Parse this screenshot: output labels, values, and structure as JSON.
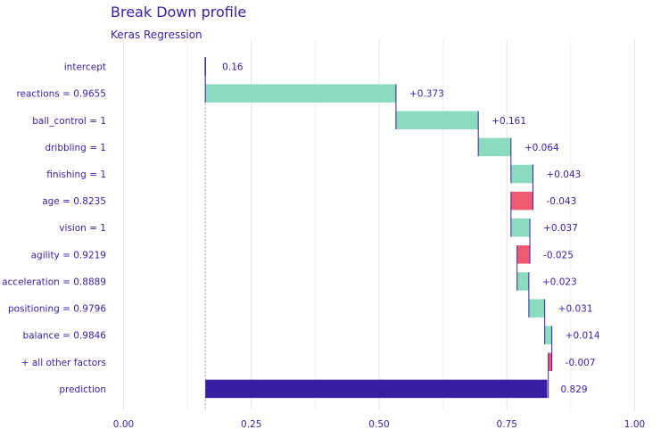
{
  "chart_data": {
    "type": "bar",
    "title": "Break Down profile",
    "subtitle": "Keras Regression",
    "xlim": [
      0,
      1
    ],
    "x_ticks": [
      "0.00",
      "0.25",
      "0.50",
      "0.75",
      "1.00"
    ],
    "x_tick_values": [
      0,
      0.25,
      0.5,
      0.75,
      1.0
    ],
    "grid": true,
    "baseline": 0.16,
    "colors": {
      "positive": "#8bdcbe",
      "negative": "#f05a71",
      "prediction": "#371ea3",
      "text": "#371ea3",
      "grid": "#e6e6e6"
    },
    "bars": [
      {
        "label": "intercept",
        "kind": "intercept",
        "value": 0.16,
        "value_label": "0.16"
      },
      {
        "label": "reactions = 0.9655",
        "kind": "contribution",
        "value": 0.373,
        "value_label": "+0.373"
      },
      {
        "label": "ball_control = 1",
        "kind": "contribution",
        "value": 0.161,
        "value_label": "+0.161"
      },
      {
        "label": "dribbling = 1",
        "kind": "contribution",
        "value": 0.064,
        "value_label": "+0.064"
      },
      {
        "label": "finishing = 1",
        "kind": "contribution",
        "value": 0.043,
        "value_label": "+0.043"
      },
      {
        "label": "age = 0.8235",
        "kind": "contribution",
        "value": -0.043,
        "value_label": "-0.043"
      },
      {
        "label": "vision = 1",
        "kind": "contribution",
        "value": 0.037,
        "value_label": "+0.037"
      },
      {
        "label": "agility = 0.9219",
        "kind": "contribution",
        "value": -0.025,
        "value_label": "-0.025"
      },
      {
        "label": "acceleration = 0.8889",
        "kind": "contribution",
        "value": 0.023,
        "value_label": "+0.023"
      },
      {
        "label": "positioning = 0.9796",
        "kind": "contribution",
        "value": 0.031,
        "value_label": "+0.031"
      },
      {
        "label": "balance = 0.9846",
        "kind": "contribution",
        "value": 0.014,
        "value_label": "+0.014"
      },
      {
        "label": "+ all other factors",
        "kind": "contribution",
        "value": -0.007,
        "value_label": "-0.007"
      },
      {
        "label": "prediction",
        "kind": "prediction",
        "value": 0.829,
        "value_label": "0.829"
      }
    ]
  }
}
